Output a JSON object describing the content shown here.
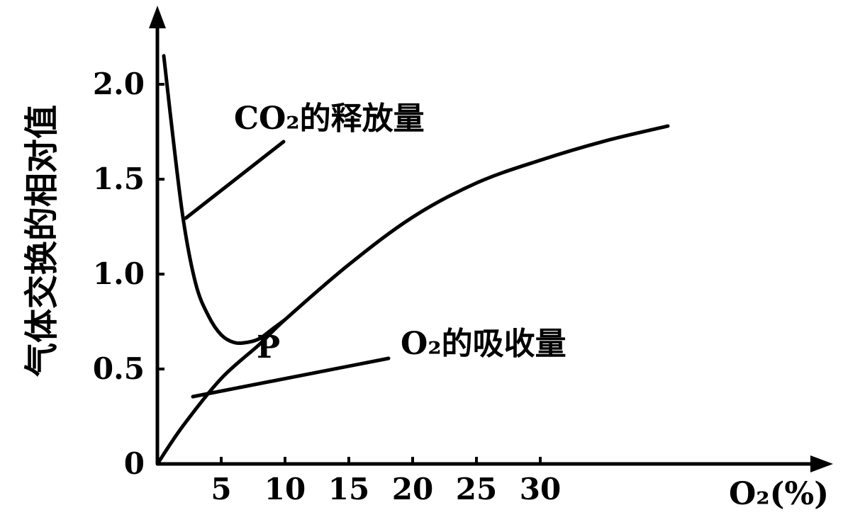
{
  "chart_data": {
    "type": "line",
    "ylabel": "气体交换的相对值",
    "xlabel": "O₂(%)",
    "x_ticks": [
      "5",
      "10",
      "15",
      "20",
      "25",
      "30"
    ],
    "y_ticks": [
      "0",
      "0.5",
      "1.0",
      "1.5",
      "2.0"
    ],
    "origin_label": "0",
    "xlim": [
      0,
      40
    ],
    "ylim": [
      0,
      2.3
    ],
    "grid": false,
    "series": [
      {
        "name": "CO₂的释放量",
        "x": [
          0.5,
          1,
          2,
          3,
          4,
          5,
          6,
          7,
          8,
          9,
          10
        ],
        "y": [
          2.15,
          1.85,
          1.3,
          0.95,
          0.78,
          0.68,
          0.64,
          0.64,
          0.66,
          0.71,
          0.76
        ]
      },
      {
        "name": "O₂的吸收量",
        "x": [
          0,
          2,
          5,
          8,
          10,
          15,
          20,
          25,
          30,
          35,
          40
        ],
        "y": [
          0,
          0.2,
          0.45,
          0.63,
          0.76,
          1.05,
          1.3,
          1.48,
          1.6,
          1.7,
          1.78
        ]
      }
    ],
    "annotations": {
      "co2_label": "CO₂的释放量",
      "o2_label": "O₂的吸收量",
      "point_label": "P"
    }
  }
}
